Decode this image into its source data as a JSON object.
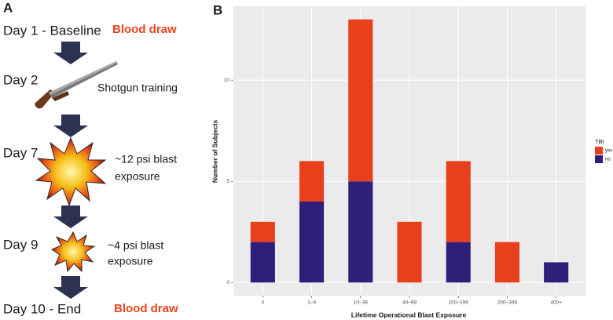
{
  "panel_a": {
    "label": "A",
    "steps": [
      {
        "day": "Day 1 - Baseline",
        "blood_draw": "Blood draw"
      },
      {
        "day": "Day 2",
        "event": [
          "Shotgun training"
        ]
      },
      {
        "day": "Day 7",
        "event": [
          "~12 psi blast",
          "exposure"
        ]
      },
      {
        "day": "Day 9",
        "event": [
          "~4 psi blast",
          "exposure"
        ]
      },
      {
        "day": "Day 10 - End",
        "blood_draw": "Blood draw"
      }
    ]
  },
  "chart_data": {
    "type": "bar",
    "stacked": true,
    "panel_label": "B",
    "x_label": "Lifetime Operational Blast Exposure",
    "y_label": "Number of Subjects",
    "categories": [
      "0",
      "1–9",
      "10–39",
      "40–99",
      "100–199",
      "200–399",
      "400+"
    ],
    "series": [
      {
        "name": "yes",
        "color": "#e8401c",
        "values": [
          1,
          2,
          8,
          3,
          4,
          2,
          0
        ]
      },
      {
        "name": "no",
        "color": "#2e1f7a",
        "values": [
          2,
          4,
          5,
          0,
          2,
          0,
          1
        ]
      }
    ],
    "legend_title": "TBI",
    "legend": "right",
    "ylim": [
      -0.65,
      13.65
    ],
    "yticks": [
      0,
      5,
      10
    ],
    "grid": true
  }
}
